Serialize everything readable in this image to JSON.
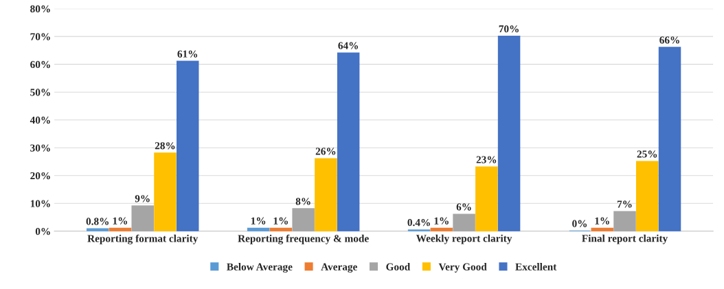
{
  "chart_data": {
    "type": "bar",
    "categories": [
      "Reporting format clarity",
      "Reporting frequency & mode",
      "Weekly report clarity",
      "Final report clarity"
    ],
    "series": [
      {
        "name": "Below Average",
        "color": "#5b9bd5",
        "values": [
          0.8,
          1,
          0.4,
          0
        ],
        "value_labels": [
          "0.8%",
          "1%",
          "0.4%",
          "0%"
        ]
      },
      {
        "name": "Average",
        "color": "#ed7d31",
        "values": [
          1,
          1,
          1,
          1
        ],
        "value_labels": [
          "1%",
          "1%",
          "1%",
          "1%"
        ]
      },
      {
        "name": "Good",
        "color": "#a5a5a5",
        "values": [
          9,
          8,
          6,
          7
        ],
        "value_labels": [
          "9%",
          "8%",
          "6%",
          "7%"
        ]
      },
      {
        "name": "Very Good",
        "color": "#ffc000",
        "values": [
          28,
          26,
          23,
          25
        ],
        "value_labels": [
          "28%",
          "26%",
          "23%",
          "25%"
        ]
      },
      {
        "name": "Excellent",
        "color": "#4472c4",
        "values": [
          61,
          64,
          70,
          66
        ],
        "value_labels": [
          "61%",
          "64%",
          "70%",
          "66%"
        ]
      }
    ],
    "ylim": [
      0,
      80
    ],
    "yticks": [
      {
        "value": 0,
        "label": "0%"
      },
      {
        "value": 10,
        "label": "10%"
      },
      {
        "value": 20,
        "label": "20%"
      },
      {
        "value": 30,
        "label": "30%"
      },
      {
        "value": 40,
        "label": "40%"
      },
      {
        "value": 50,
        "label": "50%"
      },
      {
        "value": 60,
        "label": "60%"
      },
      {
        "value": 70,
        "label": "70%"
      },
      {
        "value": 80,
        "label": "80%"
      }
    ],
    "grid": "y",
    "legend": "bottom"
  }
}
